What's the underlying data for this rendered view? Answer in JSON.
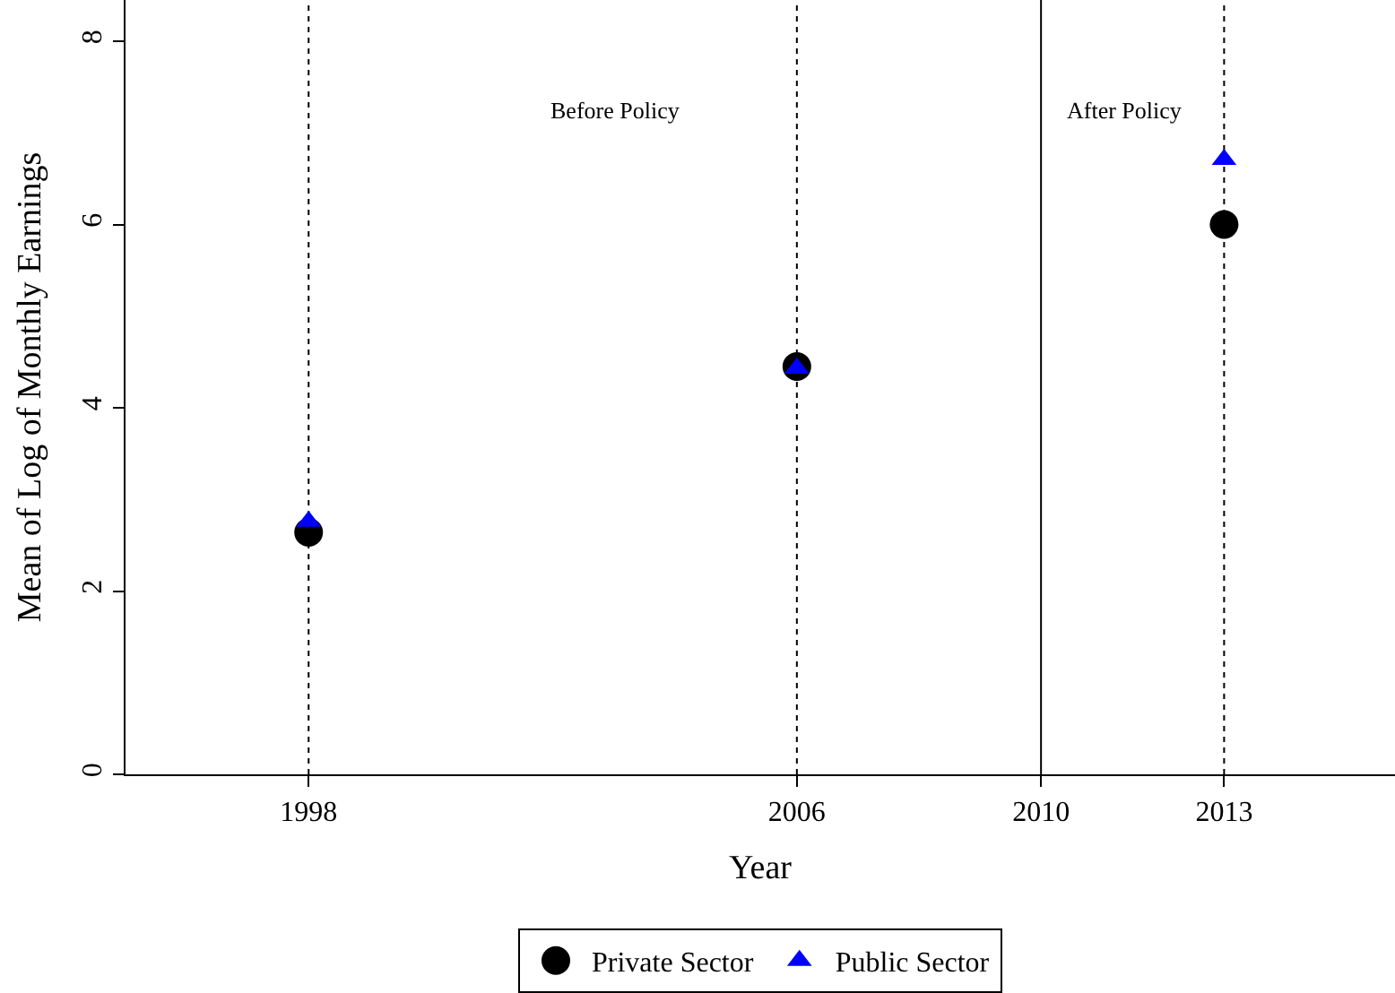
{
  "chart_data": {
    "type": "scatter",
    "xlabel": "Year",
    "ylabel": "Mean of Log of Monthly Earnings",
    "x": [
      1998,
      2006,
      2013
    ],
    "series": [
      {
        "name": "Private Sector",
        "color": "#000000",
        "marker": "circle",
        "values": [
          2.64,
          4.45,
          6.0
        ]
      },
      {
        "name": "Public Sector",
        "color": "#0000ff",
        "marker": "triangle",
        "values": [
          2.76,
          4.43,
          6.71
        ]
      }
    ],
    "xlim": [
      1995,
      2015.8
    ],
    "ylim": [
      0,
      8.45
    ],
    "xticks": [
      1998,
      2006,
      2010,
      2013
    ],
    "yticks": [
      0,
      2,
      4,
      6,
      8
    ],
    "ref_lines": [
      {
        "axis": "x",
        "value": 1998,
        "line_style": "dotted",
        "color": "#000000"
      },
      {
        "axis": "x",
        "value": 2006,
        "line_style": "dotted",
        "color": "#000000"
      },
      {
        "axis": "x",
        "value": 2010,
        "line_style": "solid",
        "color": "#000000"
      },
      {
        "axis": "x",
        "value": 2013,
        "line_style": "dotted",
        "color": "#000000"
      }
    ],
    "annotations": [
      "Before Policy",
      "After Policy"
    ],
    "grid": false,
    "legend": "bottom"
  }
}
